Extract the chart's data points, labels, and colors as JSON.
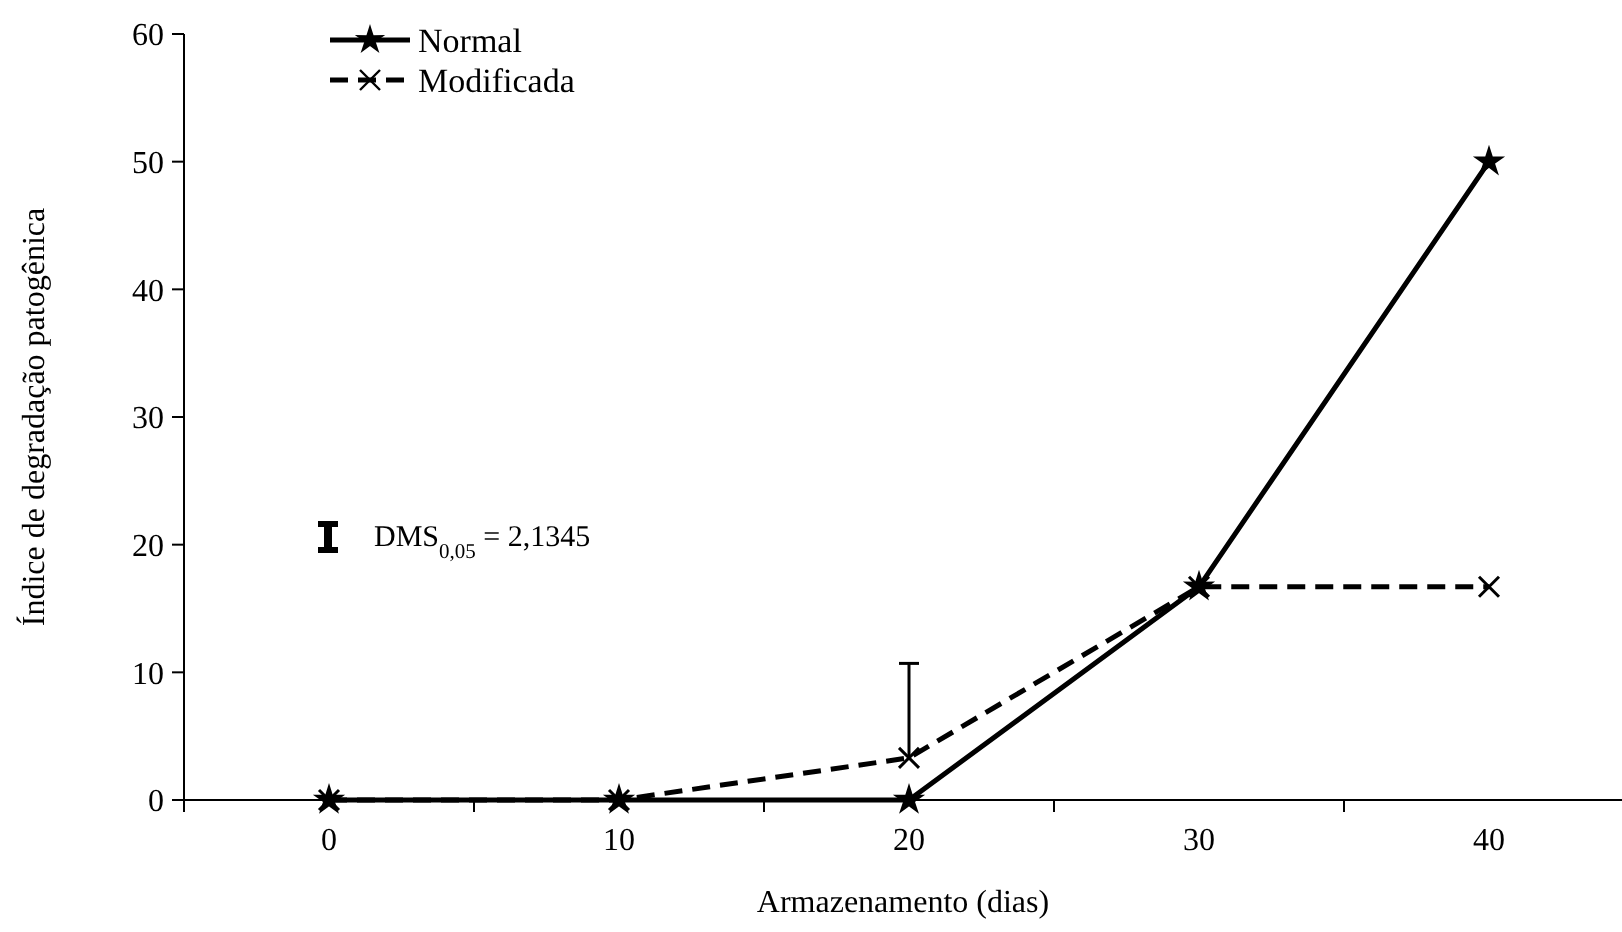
{
  "chart_data": {
    "type": "line",
    "xlabel": "Armazenamento (dias)",
    "ylabel": "Índice de degradação patogênica",
    "categories": [
      "0",
      "10",
      "20",
      "30",
      "40"
    ],
    "series": [
      {
        "name": "Normal",
        "color": "#000000",
        "values": [
          0,
          0,
          0,
          16.7,
          50
        ],
        "marker": "star",
        "line_style": "solid"
      },
      {
        "name": "Modificada",
        "color": "#000000",
        "values": [
          0,
          0,
          3.3,
          16.7,
          16.7
        ],
        "marker": "cross",
        "line_style": "dashed",
        "errors": [
          null,
          null,
          [
            3.3,
            10.7
          ],
          null,
          null
        ]
      }
    ],
    "ylim": [
      0,
      60
    ],
    "yticks": [
      0,
      10,
      20,
      30,
      40,
      50,
      60
    ],
    "grid": false,
    "legend": "top left",
    "annotations": [
      "DMS$_{0,05}$ = 2,1345"
    ]
  }
}
